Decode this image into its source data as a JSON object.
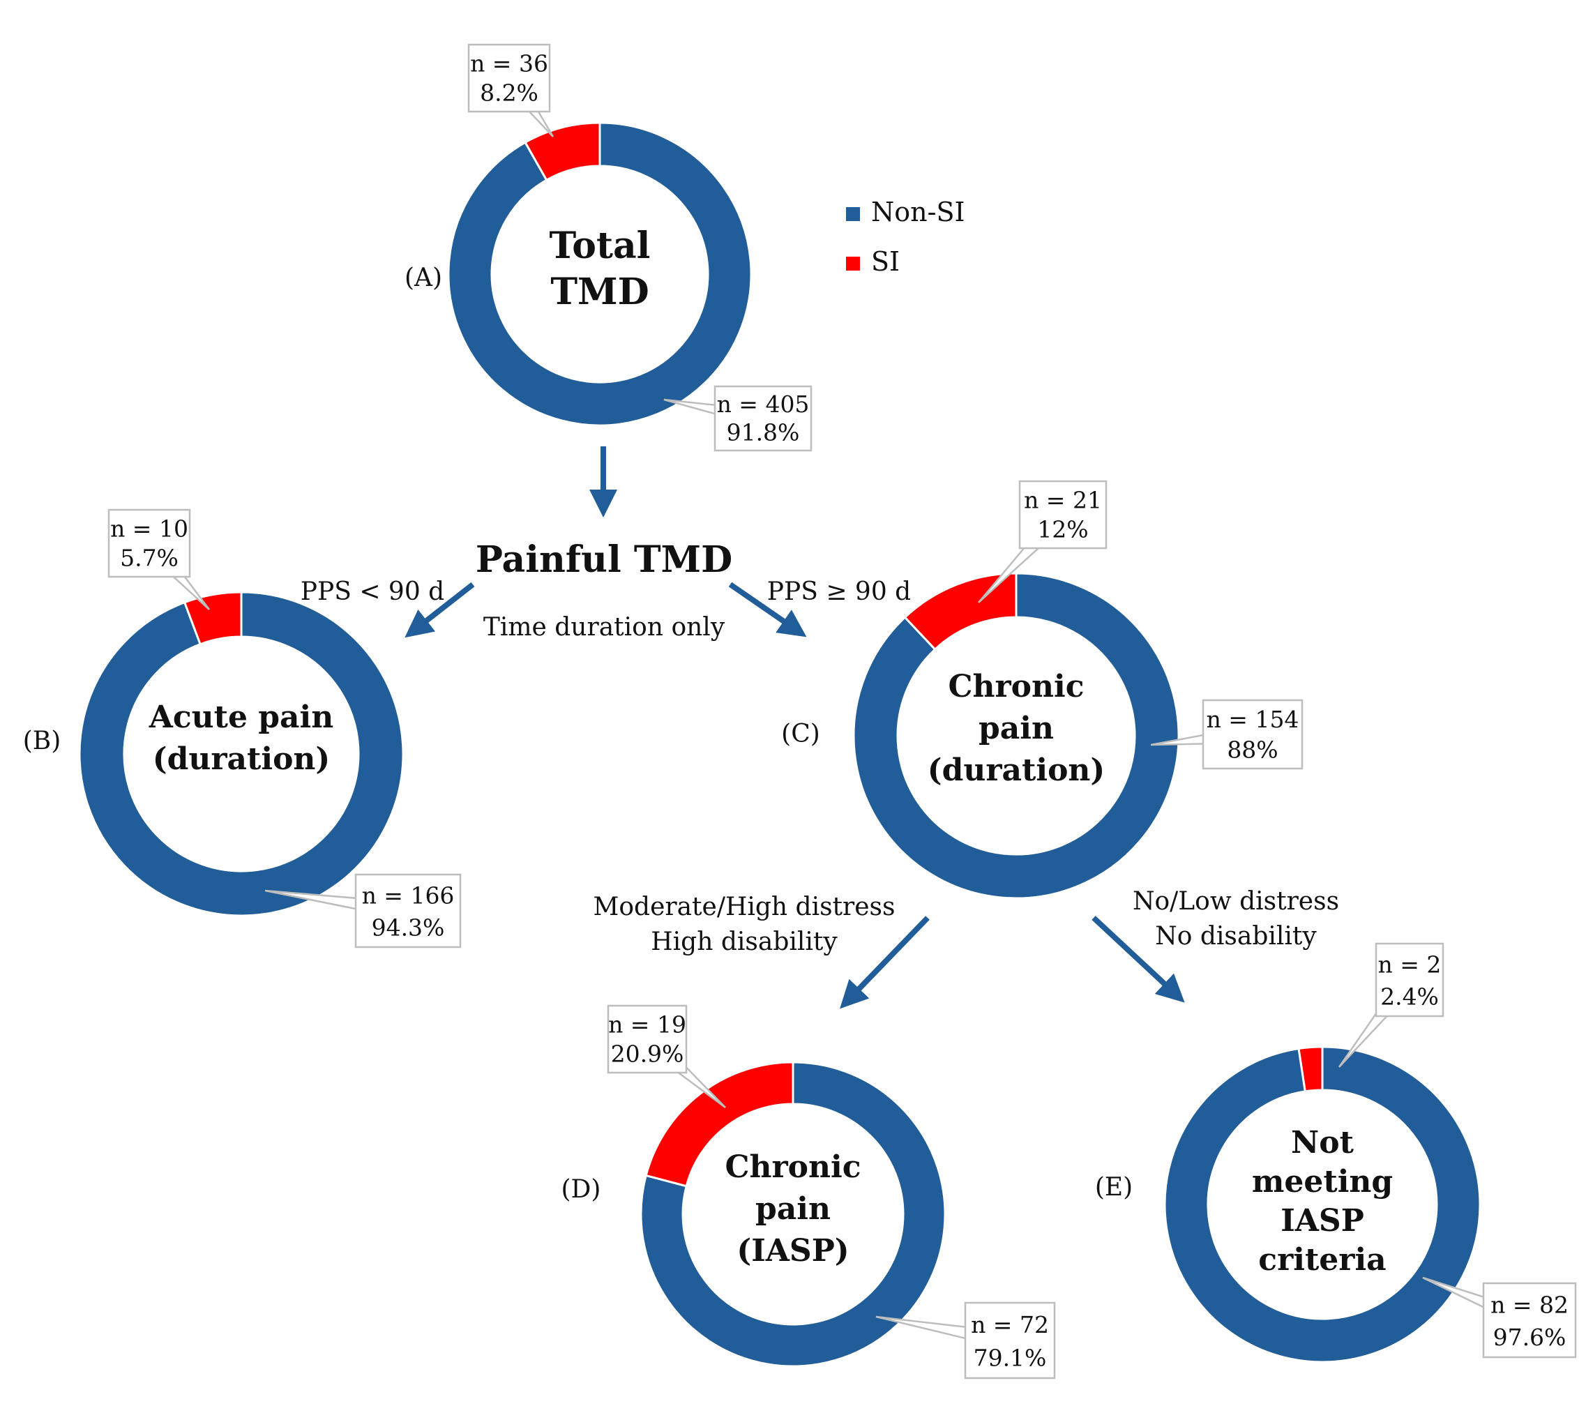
{
  "legend": [
    {
      "label": "Non-SI",
      "color": "#215D99"
    },
    {
      "label": "SI",
      "color": "#FF0000"
    }
  ],
  "flow": {
    "painful_title": "Painful TMD",
    "left_branch": "PPS < 90 d",
    "right_branch": "PPS ≥ 90 d",
    "time_note": "Time duration only",
    "lower_left": [
      "Moderate/High distress",
      "High disability"
    ],
    "lower_right": [
      "No/Low distress",
      "No disability"
    ]
  },
  "chart_data": [
    {
      "type": "pie",
      "panel": "(A)",
      "center_title": [
        "Total",
        "TMD"
      ],
      "series": [
        {
          "name": "Non-SI",
          "n": 405,
          "percent": 91.8,
          "n_label": "n = 405",
          "pct_label": "91.8%"
        },
        {
          "name": "SI",
          "n": 36,
          "percent": 8.2,
          "n_label": "n = 36",
          "pct_label": "8.2%"
        }
      ]
    },
    {
      "type": "pie",
      "panel": "(B)",
      "center_title": [
        "Acute pain",
        "(duration)"
      ],
      "series": [
        {
          "name": "Non-SI",
          "n": 166,
          "percent": 94.3,
          "n_label": "n = 166",
          "pct_label": "94.3%"
        },
        {
          "name": "SI",
          "n": 10,
          "percent": 5.7,
          "n_label": "n = 10",
          "pct_label": "5.7%"
        }
      ]
    },
    {
      "type": "pie",
      "panel": "(C)",
      "center_title": [
        "Chronic",
        "pain",
        "(duration)"
      ],
      "series": [
        {
          "name": "Non-SI",
          "n": 154,
          "percent": 88,
          "n_label": "n = 154",
          "pct_label": "88%"
        },
        {
          "name": "SI",
          "n": 21,
          "percent": 12,
          "n_label": "n = 21",
          "pct_label": "12%"
        }
      ]
    },
    {
      "type": "pie",
      "panel": "(D)",
      "center_title": [
        "Chronic",
        "pain",
        "(IASP)"
      ],
      "series": [
        {
          "name": "Non-SI",
          "n": 72,
          "percent": 79.1,
          "n_label": "n = 72",
          "pct_label": "79.1%"
        },
        {
          "name": "SI",
          "n": 19,
          "percent": 20.9,
          "n_label": "n = 19",
          "pct_label": "20.9%"
        }
      ]
    },
    {
      "type": "pie",
      "panel": "(E)",
      "center_title": [
        "Not",
        "meeting",
        "IASP",
        "criteria"
      ],
      "series": [
        {
          "name": "Non-SI",
          "n": 82,
          "percent": 97.6,
          "n_label": "n = 82",
          "pct_label": "97.6%"
        },
        {
          "name": "SI",
          "n": 2,
          "percent": 2.4,
          "n_label": "n = 2",
          "pct_label": "2.4%"
        }
      ]
    }
  ]
}
